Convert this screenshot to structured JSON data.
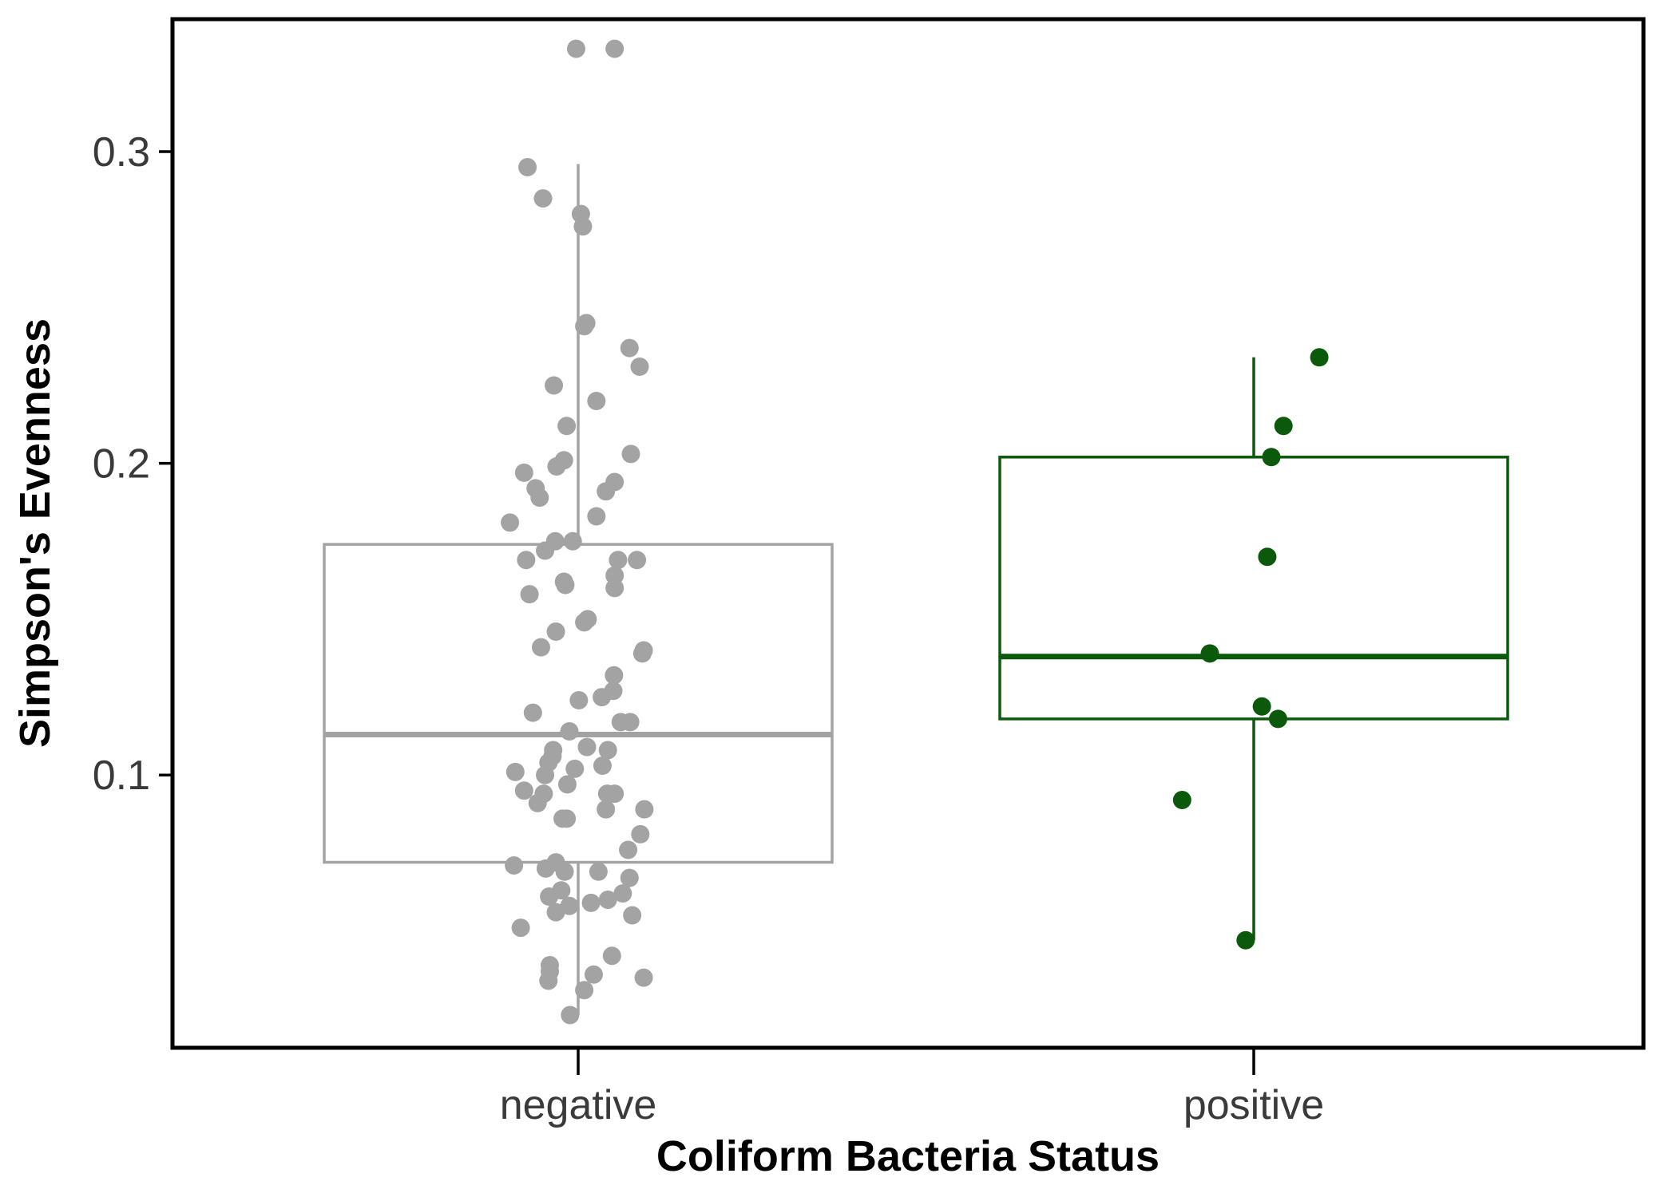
{
  "chart_data": {
    "type": "box",
    "xlabel": "Coliform Bacteria Status",
    "ylabel": "Simpson's Evenness",
    "categories": [
      "negative",
      "positive"
    ],
    "ylim": [
      0.0125,
      0.3425
    ],
    "yticks": [
      0.1,
      0.2,
      0.3
    ],
    "ytick_labels": [
      "0.1",
      "0.2",
      "0.3"
    ],
    "grid": false,
    "legend": "none",
    "groups": [
      {
        "category": "negative",
        "color": "#a3a3a3",
        "box": {
          "whisker_low": 0.023,
          "q1": 0.072,
          "median": 0.113,
          "q3": 0.174,
          "whisker_high": 0.296
        },
        "points": [
          {
            "x": -0.003,
            "y": 0.333
          },
          {
            "x": 0.054,
            "y": 0.333
          },
          {
            "x": -0.075,
            "y": 0.295
          },
          {
            "x": -0.052,
            "y": 0.285
          },
          {
            "x": 0.004,
            "y": 0.28
          },
          {
            "x": 0.007,
            "y": 0.276
          },
          {
            "x": 0.009,
            "y": 0.244
          },
          {
            "x": 0.012,
            "y": 0.245
          },
          {
            "x": 0.076,
            "y": 0.237
          },
          {
            "x": 0.091,
            "y": 0.231
          },
          {
            "x": -0.036,
            "y": 0.225
          },
          {
            "x": 0.027,
            "y": 0.22
          },
          {
            "x": -0.017,
            "y": 0.212
          },
          {
            "x": 0.078,
            "y": 0.203
          },
          {
            "x": -0.021,
            "y": 0.201
          },
          {
            "x": -0.032,
            "y": 0.199
          },
          {
            "x": -0.08,
            "y": 0.197
          },
          {
            "x": 0.054,
            "y": 0.194
          },
          {
            "x": -0.063,
            "y": 0.192
          },
          {
            "x": 0.041,
            "y": 0.191
          },
          {
            "x": -0.057,
            "y": 0.189
          },
          {
            "x": 0.027,
            "y": 0.183
          },
          {
            "x": -0.101,
            "y": 0.181
          },
          {
            "x": -0.034,
            "y": 0.175
          },
          {
            "x": -0.008,
            "y": 0.175
          },
          {
            "x": -0.049,
            "y": 0.172
          },
          {
            "x": -0.077,
            "y": 0.169
          },
          {
            "x": 0.059,
            "y": 0.169
          },
          {
            "x": 0.087,
            "y": 0.169
          },
          {
            "x": 0.054,
            "y": 0.164
          },
          {
            "x": -0.021,
            "y": 0.162
          },
          {
            "x": -0.019,
            "y": 0.161
          },
          {
            "x": 0.054,
            "y": 0.16
          },
          {
            "x": -0.072,
            "y": 0.158
          },
          {
            "x": 0.014,
            "y": 0.15
          },
          {
            "x": 0.009,
            "y": 0.149
          },
          {
            "x": -0.033,
            "y": 0.146
          },
          {
            "x": -0.055,
            "y": 0.141
          },
          {
            "x": 0.097,
            "y": 0.14
          },
          {
            "x": 0.095,
            "y": 0.139
          },
          {
            "x": 0.053,
            "y": 0.132
          },
          {
            "x": 0.052,
            "y": 0.127
          },
          {
            "x": 0.035,
            "y": 0.125
          },
          {
            "x": 0.001,
            "y": 0.124
          },
          {
            "x": -0.067,
            "y": 0.12
          },
          {
            "x": 0.063,
            "y": 0.117
          },
          {
            "x": 0.077,
            "y": 0.117
          },
          {
            "x": -0.013,
            "y": 0.114
          },
          {
            "x": 0.013,
            "y": 0.109
          },
          {
            "x": 0.044,
            "y": 0.108
          },
          {
            "x": -0.037,
            "y": 0.108
          },
          {
            "x": -0.038,
            "y": 0.106
          },
          {
            "x": -0.044,
            "y": 0.104
          },
          {
            "x": 0.036,
            "y": 0.103
          },
          {
            "x": -0.005,
            "y": 0.102
          },
          {
            "x": -0.093,
            "y": 0.101
          },
          {
            "x": -0.049,
            "y": 0.1
          },
          {
            "x": -0.016,
            "y": 0.097
          },
          {
            "x": -0.08,
            "y": 0.095
          },
          {
            "x": 0.054,
            "y": 0.094
          },
          {
            "x": 0.043,
            "y": 0.094
          },
          {
            "x": -0.051,
            "y": 0.094
          },
          {
            "x": -0.06,
            "y": 0.091
          },
          {
            "x": 0.098,
            "y": 0.089
          },
          {
            "x": 0.041,
            "y": 0.089
          },
          {
            "x": -0.023,
            "y": 0.086
          },
          {
            "x": -0.017,
            "y": 0.086
          },
          {
            "x": 0.092,
            "y": 0.081
          },
          {
            "x": 0.074,
            "y": 0.076
          },
          {
            "x": -0.033,
            "y": 0.072
          },
          {
            "x": -0.095,
            "y": 0.071
          },
          {
            "x": -0.048,
            "y": 0.07
          },
          {
            "x": -0.02,
            "y": 0.069
          },
          {
            "x": 0.03,
            "y": 0.069
          },
          {
            "x": 0.076,
            "y": 0.067
          },
          {
            "x": -0.025,
            "y": 0.063
          },
          {
            "x": 0.066,
            "y": 0.062
          },
          {
            "x": -0.043,
            "y": 0.061
          },
          {
            "x": 0.044,
            "y": 0.06
          },
          {
            "x": 0.019,
            "y": 0.059
          },
          {
            "x": -0.013,
            "y": 0.058
          },
          {
            "x": -0.033,
            "y": 0.056
          },
          {
            "x": 0.08,
            "y": 0.055
          },
          {
            "x": -0.085,
            "y": 0.051
          },
          {
            "x": 0.05,
            "y": 0.042
          },
          {
            "x": -0.042,
            "y": 0.039
          },
          {
            "x": -0.042,
            "y": 0.037
          },
          {
            "x": 0.023,
            "y": 0.036
          },
          {
            "x": 0.097,
            "y": 0.035
          },
          {
            "x": -0.044,
            "y": 0.034
          },
          {
            "x": 0.009,
            "y": 0.031
          },
          {
            "x": -0.012,
            "y": 0.023
          }
        ]
      },
      {
        "category": "positive",
        "color": "#0b5a0b",
        "box": {
          "whisker_low": 0.047,
          "q1": 0.118,
          "median": 0.138,
          "q3": 0.202,
          "whisker_high": 0.234
        },
        "points": [
          {
            "x": 0.097,
            "y": 0.234
          },
          {
            "x": 0.044,
            "y": 0.212
          },
          {
            "x": 0.026,
            "y": 0.202
          },
          {
            "x": 0.02,
            "y": 0.17
          },
          {
            "x": -0.065,
            "y": 0.139
          },
          {
            "x": 0.012,
            "y": 0.122
          },
          {
            "x": 0.036,
            "y": 0.118
          },
          {
            "x": -0.106,
            "y": 0.092
          },
          {
            "x": -0.012,
            "y": 0.047
          }
        ]
      }
    ]
  }
}
